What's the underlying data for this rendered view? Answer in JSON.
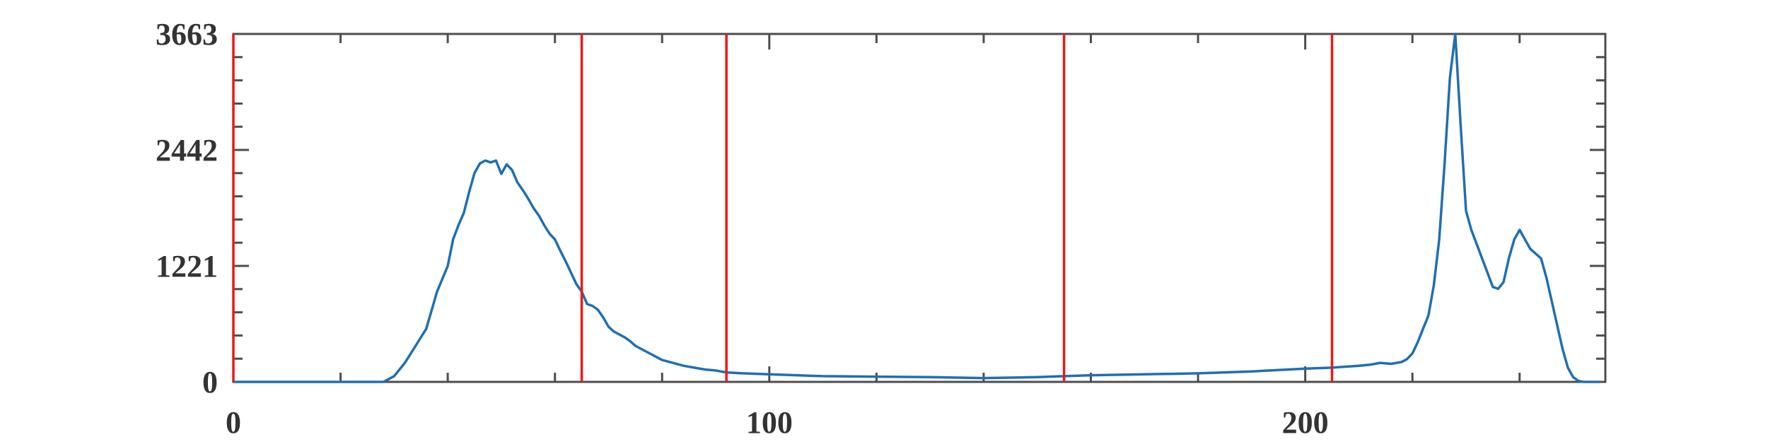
{
  "chart_data": {
    "type": "line",
    "title": "",
    "xlabel": "",
    "ylabel": "",
    "xlim": [
      0,
      256
    ],
    "ylim": [
      0,
      3663
    ],
    "x_tick_labels": [
      "0",
      "100",
      "200"
    ],
    "x_ticks": [
      0,
      100,
      200
    ],
    "x_minor_ticks": [
      20,
      40,
      60,
      80,
      120,
      140,
      160,
      180,
      220,
      240
    ],
    "y_tick_labels": [
      "0",
      "1221",
      "2442",
      "3663"
    ],
    "y_ticks": [
      0,
      1221,
      2442,
      3663
    ],
    "grid": false,
    "colors": {
      "series": "#1f6fb2",
      "threshold": "#e8191c",
      "axes": "#4d4d4d"
    },
    "vertical_lines": [
      0,
      65,
      92,
      155,
      205
    ],
    "series": [
      {
        "x": [
          0,
          28,
          30,
          32,
          34,
          36,
          38,
          40,
          41,
          42,
          43,
          44,
          45,
          46,
          47,
          48,
          49,
          50,
          51,
          52,
          53,
          54,
          55,
          56,
          57,
          58,
          59,
          60,
          61,
          62,
          63,
          64,
          65,
          66,
          67,
          68,
          69,
          70,
          71,
          72,
          73,
          74,
          75,
          76,
          77,
          78,
          79,
          80,
          82,
          84,
          86,
          88,
          90,
          92,
          95,
          100,
          110,
          120,
          130,
          140,
          145,
          150,
          155,
          160,
          170,
          180,
          190,
          200,
          205,
          210,
          212,
          214,
          216,
          218,
          219,
          220,
          221,
          222,
          223,
          224,
          225,
          226,
          227,
          228,
          229,
          230,
          231,
          232,
          233,
          234,
          235,
          236,
          237,
          238,
          239,
          240,
          241,
          242,
          243,
          244,
          245,
          246,
          247,
          248,
          249,
          250,
          251,
          252,
          253,
          254,
          255
        ],
        "y": [
          0,
          0,
          60,
          200,
          380,
          560,
          950,
          1220,
          1500,
          1650,
          1780,
          2000,
          2200,
          2300,
          2330,
          2310,
          2330,
          2190,
          2290,
          2230,
          2100,
          2020,
          1930,
          1830,
          1750,
          1650,
          1560,
          1500,
          1380,
          1270,
          1150,
          1030,
          950,
          820,
          800,
          760,
          680,
          580,
          530,
          500,
          470,
          430,
          380,
          350,
          320,
          290,
          260,
          230,
          200,
          170,
          150,
          130,
          120,
          100,
          90,
          80,
          60,
          55,
          50,
          40,
          45,
          50,
          60,
          70,
          80,
          90,
          110,
          140,
          150,
          170,
          180,
          200,
          190,
          210,
          240,
          300,
          420,
          560,
          700,
          1020,
          1500,
          2300,
          3200,
          3663,
          2700,
          1800,
          1600,
          1450,
          1300,
          1150,
          1000,
          980,
          1050,
          1300,
          1500,
          1600,
          1500,
          1400,
          1350,
          1300,
          1100,
          850,
          600,
          350,
          150,
          50,
          10,
          0,
          0,
          0,
          0
        ]
      }
    ]
  }
}
